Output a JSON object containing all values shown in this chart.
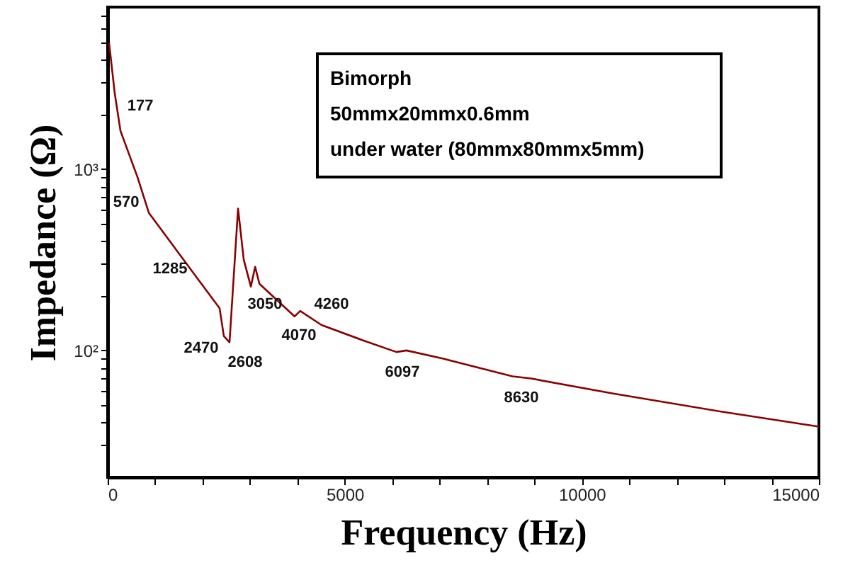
{
  "chart_data": {
    "type": "line",
    "xlabel": "Frequency (Hz)",
    "ylabel": "Impedance  (Ω)",
    "log": "y",
    "grid": false,
    "marker": "none",
    "line_style": "solid",
    "xlim": [
      0,
      15000
    ],
    "ylim": [
      20,
      7800
    ],
    "xticks": [
      0,
      {
        "value": 1000,
        "label": null
      },
      {
        "value": 2000,
        "label": null
      },
      {
        "value": 3000,
        "label": null
      },
      {
        "value": 4000,
        "label": null
      },
      5000,
      {
        "value": 6000,
        "label": null
      },
      {
        "value": 7000,
        "label": null
      },
      {
        "value": 8000,
        "label": null
      },
      {
        "value": 9000,
        "label": null
      },
      10000,
      {
        "value": 11000,
        "label": null
      },
      {
        "value": 12000,
        "label": null
      },
      {
        "value": 13000,
        "label": null
      },
      {
        "value": 14000,
        "label": null
      },
      15000
    ],
    "yticks": [
      {
        "value": 30,
        "label": null
      },
      {
        "value": 40,
        "label": null
      },
      {
        "value": 50,
        "label": null
      },
      {
        "value": 60,
        "label": null
      },
      {
        "value": 70,
        "label": null
      },
      {
        "value": 80,
        "label": null
      },
      {
        "value": 90,
        "label": null
      },
      {
        "value": 100,
        "label": "10²"
      },
      {
        "value": 200,
        "label": null
      },
      {
        "value": 300,
        "label": null
      },
      {
        "value": 400,
        "label": null
      },
      {
        "value": 500,
        "label": null
      },
      {
        "value": 600,
        "label": null
      },
      {
        "value": 700,
        "label": null
      },
      {
        "value": 800,
        "label": null
      },
      {
        "value": 900,
        "label": null
      },
      {
        "value": 1000,
        "label": "10³"
      },
      {
        "value": 2000,
        "label": null
      },
      {
        "value": 3000,
        "label": null
      },
      {
        "value": 4000,
        "label": null
      },
      {
        "value": 5000,
        "label": null
      },
      {
        "value": 6000,
        "label": null
      },
      {
        "value": 7000,
        "label": null
      }
    ],
    "x": [
      30,
      150,
      270,
      630,
      870,
      1310,
      1910,
      2360,
      2450,
      2570,
      2750,
      2870,
      3020,
      3110,
      3200,
      3940,
      4060,
      4510,
      5410,
      6090,
      6300,
      7080,
      8540,
      8930,
      10640,
      12940,
      15000
    ],
    "series": [
      {
        "color": "#8b0000",
        "values": [
          4950,
          2600,
          1620,
          900,
          572,
          400,
          246,
          171,
          120,
          111,
          605,
          316,
          225,
          289,
          233,
          154,
          165,
          138,
          113,
          98,
          100,
          90,
          72,
          70,
          58,
          46,
          38
        ]
      }
    ],
    "annotations": [
      "177",
      "570",
      "1285",
      "2470",
      "2608",
      "3050",
      "4070",
      "4260",
      "6097",
      "8630",
      "Bimorph",
      "50mmx20mmx0.6mm",
      "under water (80mmx80mmx5mm)"
    ]
  }
}
